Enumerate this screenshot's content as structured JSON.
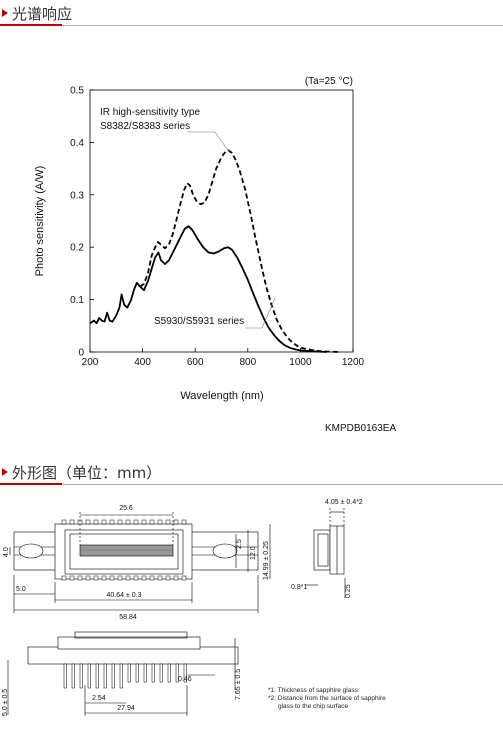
{
  "sections": {
    "spectral_title": "光谱响应",
    "dimensions_title": "外形图（单位：mm）"
  },
  "colors": {
    "accent": "#c00000",
    "rule": "#b3b3b3",
    "ink": "#000000"
  },
  "chart_data": {
    "type": "line",
    "condition": "(Ta=25 °C)",
    "xlabel": "Wavelength (nm)",
    "ylabel": "Photo sensitivity (A/W)",
    "xlim": [
      200,
      1200
    ],
    "ylim": [
      0,
      0.5
    ],
    "x_ticks": [
      "200",
      "400",
      "600",
      "800",
      "1000",
      "1200"
    ],
    "y_ticks": [
      "0",
      "0.1",
      "0.2",
      "0.3",
      "0.4",
      "0.5"
    ],
    "x_tick_values": [
      200,
      400,
      600,
      800,
      1000,
      1200
    ],
    "y_tick_values": [
      0,
      0.1,
      0.2,
      0.3,
      0.4,
      0.5
    ],
    "code": "KMPDB0163EA",
    "series": [
      {
        "name": "S5930/S5931 series",
        "style": "solid",
        "points": [
          [
            200,
            0.055
          ],
          [
            215,
            0.06
          ],
          [
            225,
            0.055
          ],
          [
            235,
            0.065
          ],
          [
            245,
            0.06
          ],
          [
            255,
            0.058
          ],
          [
            265,
            0.075
          ],
          [
            275,
            0.06
          ],
          [
            285,
            0.058
          ],
          [
            300,
            0.07
          ],
          [
            312,
            0.085
          ],
          [
            320,
            0.11
          ],
          [
            330,
            0.09
          ],
          [
            342,
            0.085
          ],
          [
            355,
            0.098
          ],
          [
            368,
            0.12
          ],
          [
            378,
            0.132
          ],
          [
            390,
            0.125
          ],
          [
            405,
            0.118
          ],
          [
            420,
            0.135
          ],
          [
            435,
            0.16
          ],
          [
            447,
            0.18
          ],
          [
            460,
            0.19
          ],
          [
            470,
            0.175
          ],
          [
            485,
            0.168
          ],
          [
            500,
            0.175
          ],
          [
            520,
            0.195
          ],
          [
            540,
            0.215
          ],
          [
            560,
            0.235
          ],
          [
            575,
            0.24
          ],
          [
            590,
            0.232
          ],
          [
            610,
            0.215
          ],
          [
            630,
            0.2
          ],
          [
            650,
            0.19
          ],
          [
            670,
            0.188
          ],
          [
            690,
            0.192
          ],
          [
            710,
            0.198
          ],
          [
            725,
            0.2
          ],
          [
            740,
            0.195
          ],
          [
            760,
            0.18
          ],
          [
            780,
            0.16
          ],
          [
            800,
            0.138
          ],
          [
            820,
            0.112
          ],
          [
            840,
            0.088
          ],
          [
            860,
            0.065
          ],
          [
            880,
            0.046
          ],
          [
            900,
            0.032
          ],
          [
            920,
            0.021
          ],
          [
            940,
            0.013
          ],
          [
            960,
            0.008
          ],
          [
            980,
            0.005
          ],
          [
            1000,
            0.003
          ],
          [
            1030,
            0.002
          ],
          [
            1060,
            0.001
          ],
          [
            1100,
            0.0
          ]
        ]
      },
      {
        "name": "IR high-sensitivity type S8382/S8383 series",
        "style": "dashed",
        "points": [
          [
            390,
            0.125
          ],
          [
            405,
            0.13
          ],
          [
            420,
            0.15
          ],
          [
            435,
            0.185
          ],
          [
            448,
            0.2
          ],
          [
            458,
            0.21
          ],
          [
            470,
            0.205
          ],
          [
            485,
            0.198
          ],
          [
            500,
            0.205
          ],
          [
            515,
            0.225
          ],
          [
            530,
            0.255
          ],
          [
            545,
            0.285
          ],
          [
            558,
            0.31
          ],
          [
            570,
            0.322
          ],
          [
            580,
            0.318
          ],
          [
            592,
            0.3
          ],
          [
            605,
            0.288
          ],
          [
            620,
            0.282
          ],
          [
            635,
            0.285
          ],
          [
            650,
            0.3
          ],
          [
            665,
            0.325
          ],
          [
            680,
            0.35
          ],
          [
            700,
            0.372
          ],
          [
            715,
            0.382
          ],
          [
            725,
            0.385
          ],
          [
            740,
            0.38
          ],
          [
            755,
            0.365
          ],
          [
            770,
            0.345
          ],
          [
            790,
            0.31
          ],
          [
            810,
            0.265
          ],
          [
            830,
            0.215
          ],
          [
            850,
            0.168
          ],
          [
            870,
            0.125
          ],
          [
            890,
            0.09
          ],
          [
            910,
            0.062
          ],
          [
            930,
            0.042
          ],
          [
            950,
            0.028
          ],
          [
            970,
            0.018
          ],
          [
            990,
            0.011
          ],
          [
            1010,
            0.007
          ],
          [
            1040,
            0.004
          ],
          [
            1070,
            0.002
          ],
          [
            1100,
            0.001
          ],
          [
            1150,
            0.0
          ]
        ]
      }
    ]
  },
  "dimensions": {
    "top_view": {
      "width_window": "25.6",
      "pitch_total": "40.64 ± 0.3",
      "overall_length": "58.84",
      "left_offset": "5.0",
      "mount_hole": "4.0",
      "height_12": "12.0",
      "height_14": "14.99 ± 0.25",
      "offset_2_5": "2.5"
    },
    "side_view": {
      "thickness": "4.05 ± 0.4*2",
      "glass": "0.8*1",
      "chip_offset": "0.25"
    },
    "front_view": {
      "pin_pitch": "2.54",
      "pin_span": "27.94",
      "pin_width": "0.46",
      "height": "7.65 ± 0.5",
      "pin_length": "5.0 ± 0.5"
    },
    "notes": [
      "*1: Thickness of sapphire glass",
      "*2: Distance from the surface of sapphire",
      "glass to the chip surface"
    ]
  }
}
